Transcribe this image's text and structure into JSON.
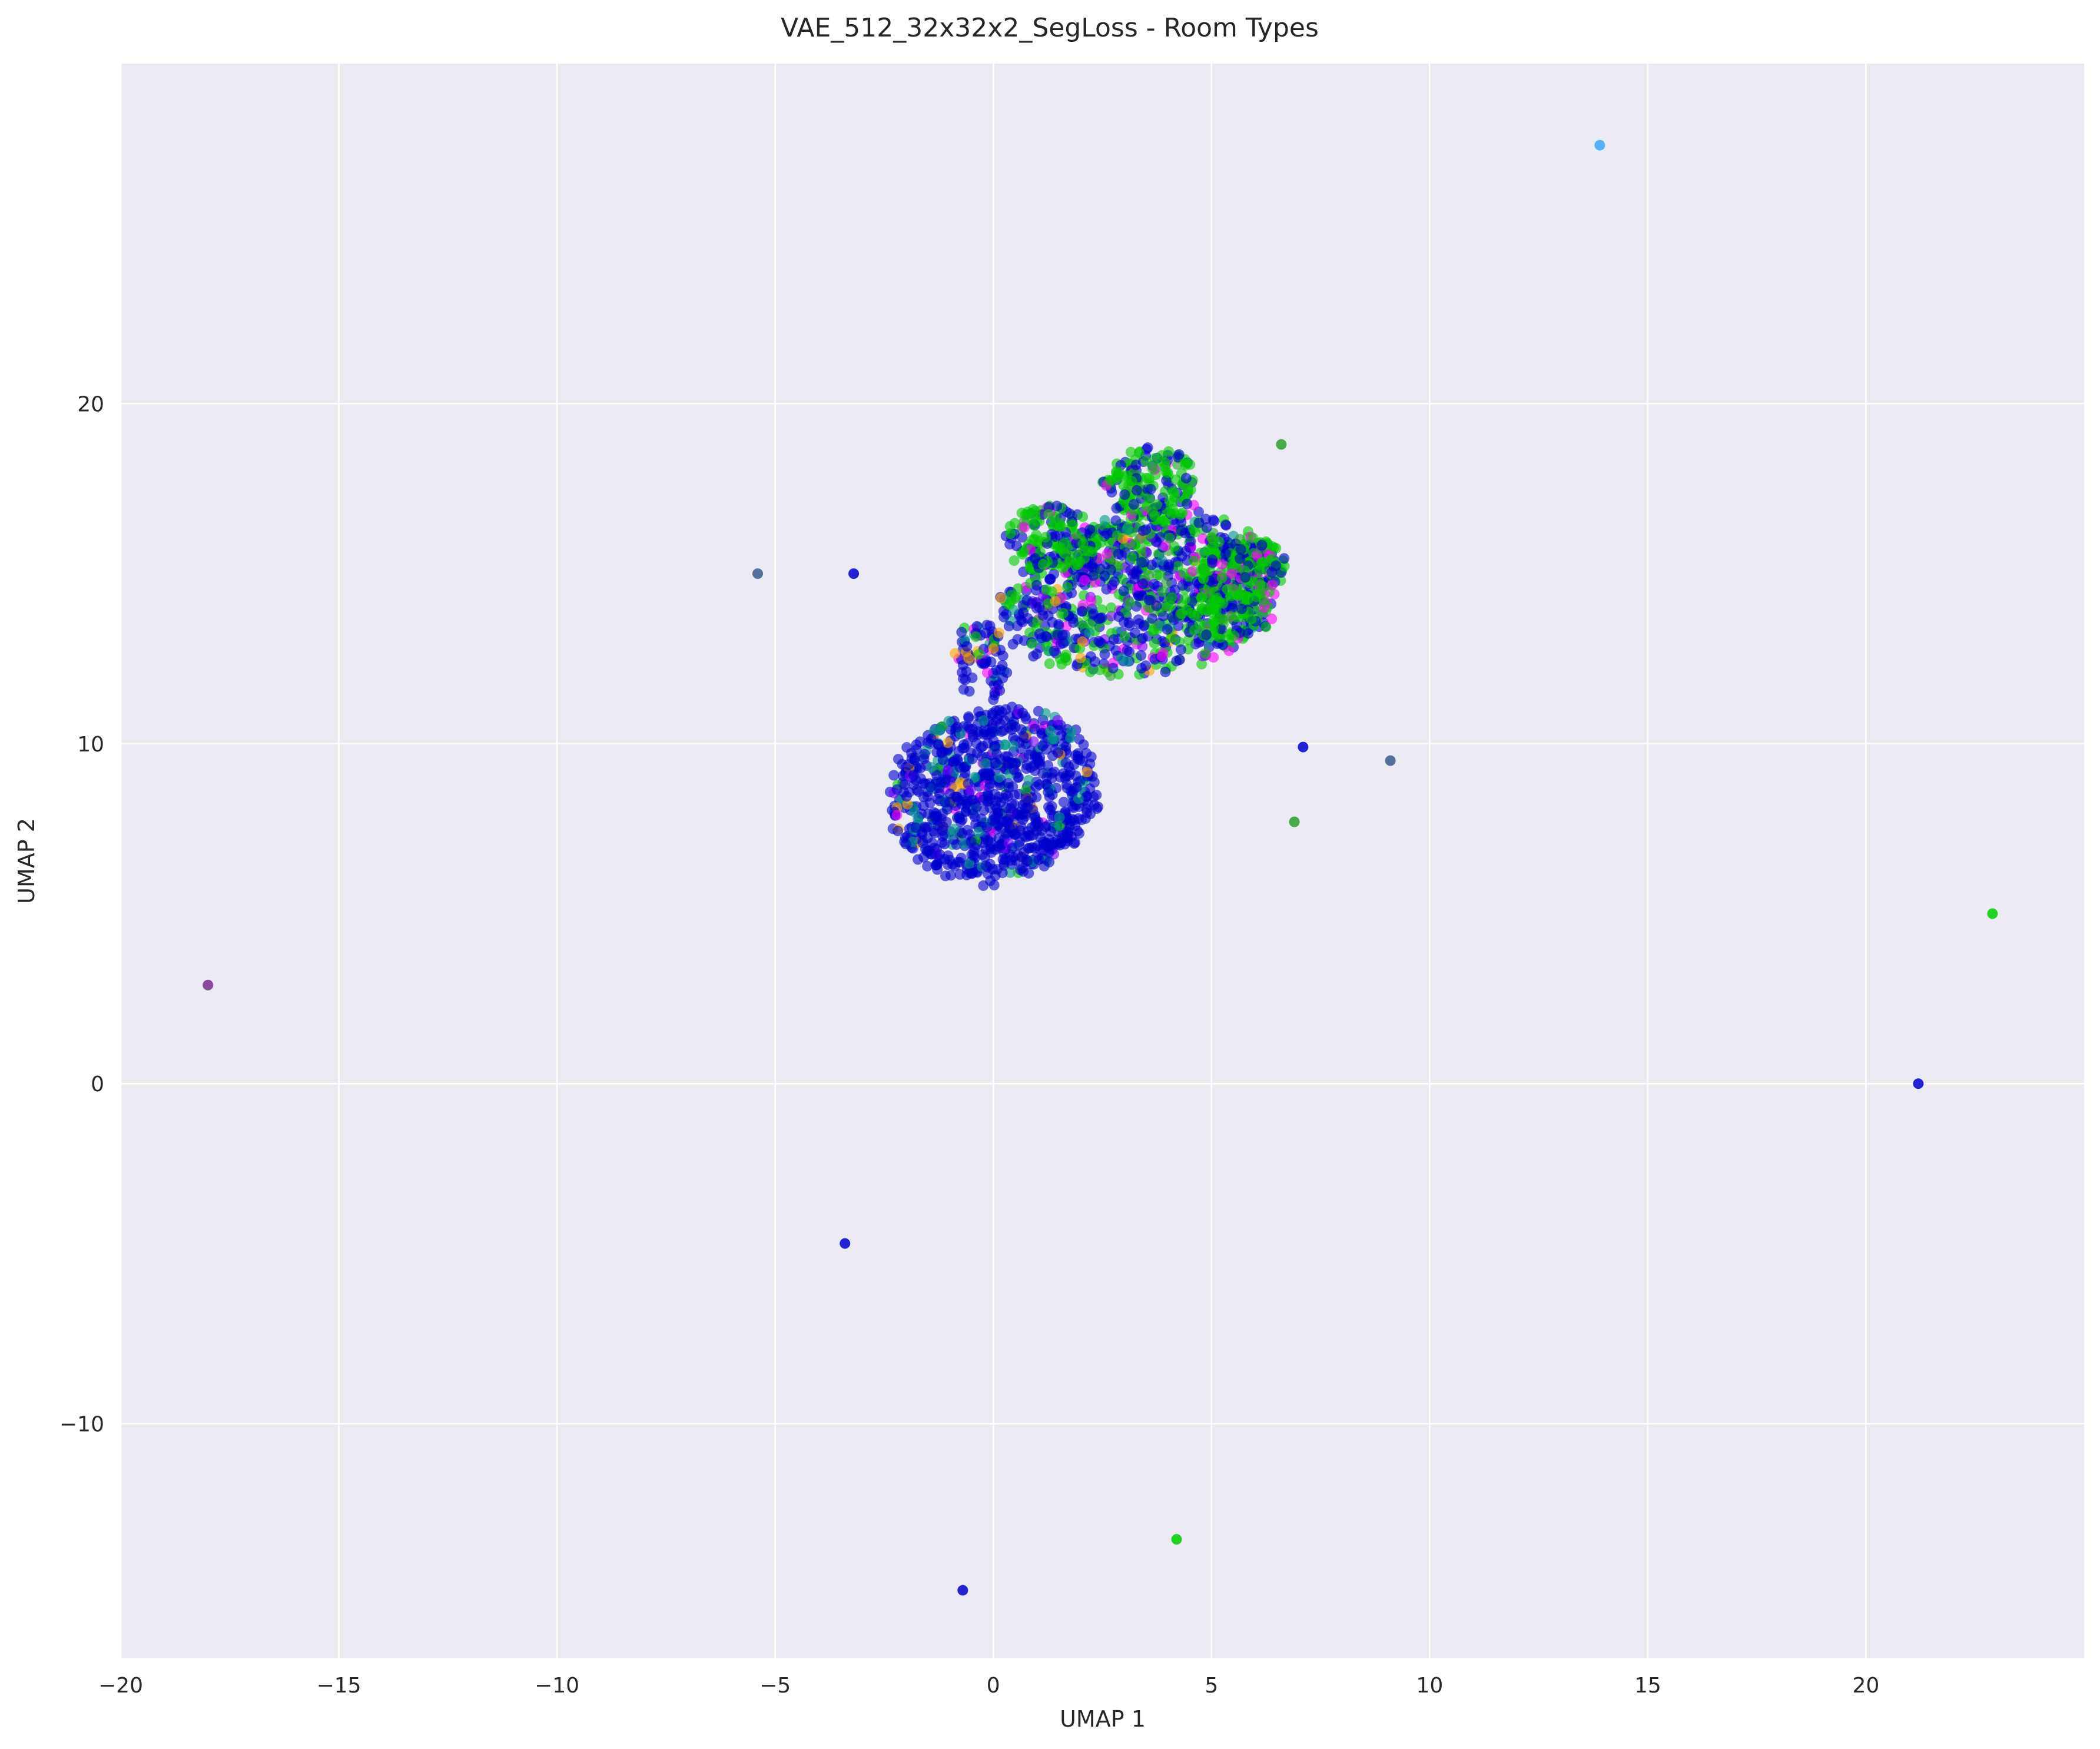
{
  "chart_data": {
    "type": "scatter",
    "title": "VAE_512_32x32x2_SegLoss - Room Types",
    "xlabel": "UMAP 1",
    "ylabel": "UMAP 2",
    "xlim": [
      -20,
      25
    ],
    "ylim": [
      -16.9,
      30
    ],
    "xticks": [
      -20,
      -15,
      -10,
      -5,
      0,
      5,
      10,
      15,
      20
    ],
    "yticks": [
      -10,
      0,
      10,
      20
    ],
    "xtick_labels": [
      "−20",
      "−15",
      "−10",
      "−5",
      "0",
      "5",
      "10",
      "15",
      "20"
    ],
    "ytick_labels": [
      "−10",
      "0",
      "10",
      "20"
    ],
    "grid": true,
    "legend": "none",
    "background_color": "#eaeaf2",
    "grid_color": "#ffffff",
    "palette": [
      "#0000cd",
      "#00cc00",
      "#ff00ff",
      "#009a88",
      "#ffa500",
      "#7f00ff",
      "#2ca02c",
      "#1e4fd6"
    ],
    "outliers": [
      {
        "x": 13.9,
        "y": 27.6,
        "color": "#3aa8ff"
      },
      {
        "x": -5.4,
        "y": 15.0,
        "color": "#3a5b8c"
      },
      {
        "x": -3.2,
        "y": 15.0,
        "color": "#0000cd"
      },
      {
        "x": 6.6,
        "y": 18.8,
        "color": "#2ca02c"
      },
      {
        "x": 7.1,
        "y": 9.9,
        "color": "#0000cd"
      },
      {
        "x": 9.1,
        "y": 9.5,
        "color": "#3a5b8c"
      },
      {
        "x": 6.9,
        "y": 7.7,
        "color": "#2ca02c"
      },
      {
        "x": 22.9,
        "y": 5.0,
        "color": "#00cc00"
      },
      {
        "x": -18.0,
        "y": 2.9,
        "color": "#7b2c8c"
      },
      {
        "x": 21.2,
        "y": 0.0,
        "color": "#0000cd"
      },
      {
        "x": -3.4,
        "y": -4.7,
        "color": "#0000cd"
      },
      {
        "x": 4.2,
        "y": -13.4,
        "color": "#00cc00"
      },
      {
        "x": -0.7,
        "y": -14.9,
        "color": "#0000cd"
      }
    ],
    "clusters": [
      {
        "cx": 0.0,
        "cy": 8.5,
        "rx": 2.3,
        "ry": 2.6,
        "rot": -25,
        "n": 900,
        "mix": [
          0.82,
          0.02,
          0.02,
          0.1,
          0.02,
          0.02,
          0.0,
          0.0
        ]
      },
      {
        "cx": 3.4,
        "cy": 14.4,
        "rx": 3.2,
        "ry": 2.3,
        "rot": 15,
        "n": 900,
        "mix": [
          0.5,
          0.3,
          0.08,
          0.03,
          0.02,
          0.03,
          0.04,
          0.0
        ]
      },
      {
        "cx": 3.6,
        "cy": 17.6,
        "rx": 1.1,
        "ry": 1.1,
        "rot": 0,
        "n": 180,
        "mix": [
          0.3,
          0.6,
          0.05,
          0.0,
          0.0,
          0.0,
          0.05,
          0.0
        ]
      },
      {
        "cx": 5.6,
        "cy": 15.2,
        "rx": 1.1,
        "ry": 1.0,
        "rot": 0,
        "n": 160,
        "mix": [
          0.3,
          0.55,
          0.12,
          0.0,
          0.0,
          0.0,
          0.03,
          0.0
        ]
      },
      {
        "cx": 1.3,
        "cy": 16.0,
        "rx": 1.1,
        "ry": 1.0,
        "rot": 0,
        "n": 140,
        "mix": [
          0.35,
          0.55,
          0.05,
          0.0,
          0.0,
          0.0,
          0.05,
          0.0
        ]
      },
      {
        "cx": 5.3,
        "cy": 13.8,
        "rx": 1.1,
        "ry": 0.7,
        "rot": 0,
        "n": 100,
        "mix": [
          0.25,
          0.65,
          0.05,
          0.0,
          0.0,
          0.0,
          0.05,
          0.0
        ]
      },
      {
        "cx": -0.3,
        "cy": 12.4,
        "rx": 0.6,
        "ry": 1.2,
        "rot": 0,
        "n": 80,
        "mix": [
          0.7,
          0.05,
          0.1,
          0.1,
          0.05,
          0.0,
          0.0,
          0.0
        ]
      }
    ]
  }
}
